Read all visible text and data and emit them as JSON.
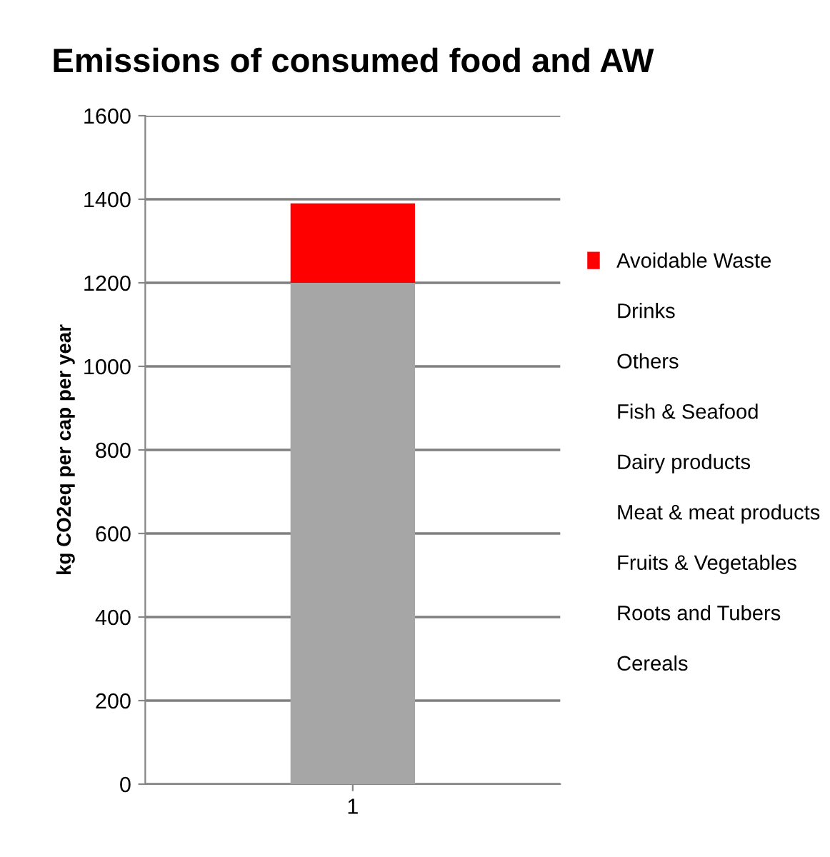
{
  "chart_data": {
    "type": "bar",
    "title": "Emissions of consumed food and AW",
    "ylabel": "kg CO2eq per cap per year",
    "categories": [
      "1"
    ],
    "stacked": true,
    "ylim": [
      0,
      1600
    ],
    "yticks": [
      0,
      200,
      400,
      600,
      800,
      1000,
      1200,
      1400,
      1600
    ],
    "grid": "y",
    "legend": "right",
    "series": [
      {
        "name": "Cereals",
        "values": [
          null
        ]
      },
      {
        "name": "Roots and Tubers",
        "values": [
          null
        ]
      },
      {
        "name": "Fruits & Vegetables",
        "values": [
          null
        ]
      },
      {
        "name": "Meat & meat products",
        "values": [
          null
        ]
      },
      {
        "name": "Dairy products",
        "values": [
          null
        ]
      },
      {
        "name": "Fish & Seafood",
        "values": [
          null
        ]
      },
      {
        "name": "Others",
        "values": [
          null
        ]
      },
      {
        "name": "Drinks",
        "values": [
          null
        ]
      },
      {
        "color": "#a6a6a6",
        "values": [
          1200
        ]
      },
      {
        "name": "Avoidable Waste",
        "color": "#ff0000",
        "values": [
          190
        ]
      }
    ]
  }
}
